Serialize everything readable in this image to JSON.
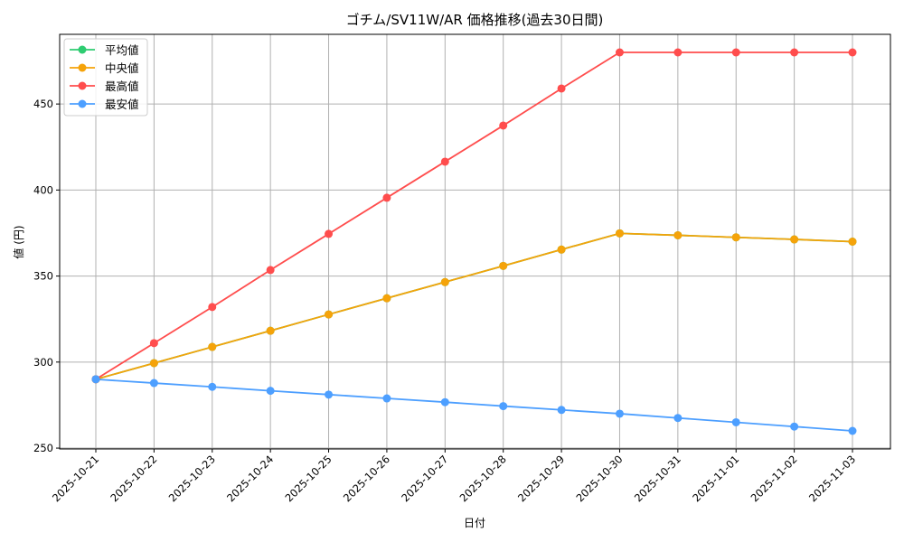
{
  "chart_data": {
    "type": "line",
    "title": "ゴチム/SV11W/AR 価格推移(過去30日間)",
    "xlabel": "日付",
    "ylabel": "値 (円)",
    "ylim": [
      249.5,
      490.5
    ],
    "yticks": [
      250,
      300,
      350,
      400,
      450
    ],
    "grid": true,
    "legend_position": "top-left",
    "categories": [
      "2025-10-21",
      "2025-10-22",
      "2025-10-23",
      "2025-10-24",
      "2025-10-25",
      "2025-10-26",
      "2025-10-27",
      "2025-10-28",
      "2025-10-29",
      "2025-10-30",
      "2025-10-31",
      "2025-11-01",
      "2025-11-02",
      "2025-11-03"
    ],
    "series": [
      {
        "name": "平均値",
        "color": "#2ecc71",
        "values": [
          290,
          299.4,
          308.8,
          318.2,
          327.7,
          337.1,
          346.5,
          355.9,
          365.4,
          374.8,
          373.7,
          372.5,
          371.3,
          370
        ]
      },
      {
        "name": "中央値",
        "color": "#f5a30a",
        "values": [
          290,
          299.4,
          308.8,
          318.2,
          327.7,
          337.1,
          346.5,
          355.9,
          365.4,
          374.8,
          373.7,
          372.5,
          371.3,
          370
        ]
      },
      {
        "name": "最高値",
        "color": "#ff4d4d",
        "values": [
          290,
          311,
          332,
          353.5,
          374.5,
          395.5,
          416.5,
          437.5,
          459,
          480,
          480,
          480,
          480,
          480
        ]
      },
      {
        "name": "最安値",
        "color": "#4d9fff",
        "values": [
          290,
          287.8,
          285.6,
          283.3,
          281.1,
          278.9,
          276.7,
          274.4,
          272.2,
          270,
          267.5,
          265,
          262.5,
          260
        ]
      }
    ]
  }
}
